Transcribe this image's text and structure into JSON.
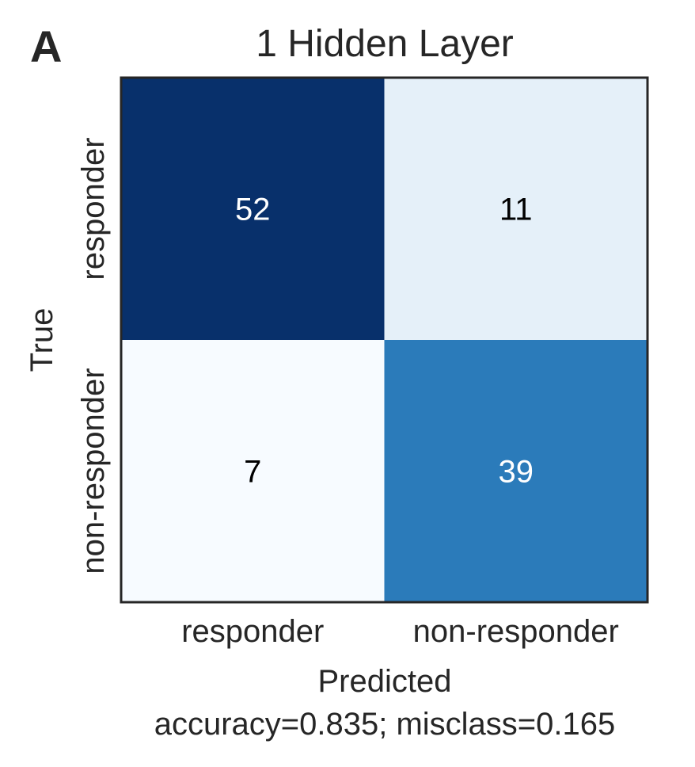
{
  "panel_label": "A",
  "chart_data": {
    "type": "heatmap",
    "title": "1 Hidden Layer",
    "xlabel": "Predicted",
    "ylabel": "True",
    "subtitle": "accuracy=0.835; misclass=0.165",
    "x_categories": [
      "responder",
      "non-responder"
    ],
    "y_categories": [
      "responder",
      "non-responder"
    ],
    "values": [
      [
        52,
        11
      ],
      [
        7,
        39
      ]
    ],
    "colormap": "Blues",
    "color_low": "#f7fbff",
    "color_high": "#08306b",
    "grid": false
  }
}
